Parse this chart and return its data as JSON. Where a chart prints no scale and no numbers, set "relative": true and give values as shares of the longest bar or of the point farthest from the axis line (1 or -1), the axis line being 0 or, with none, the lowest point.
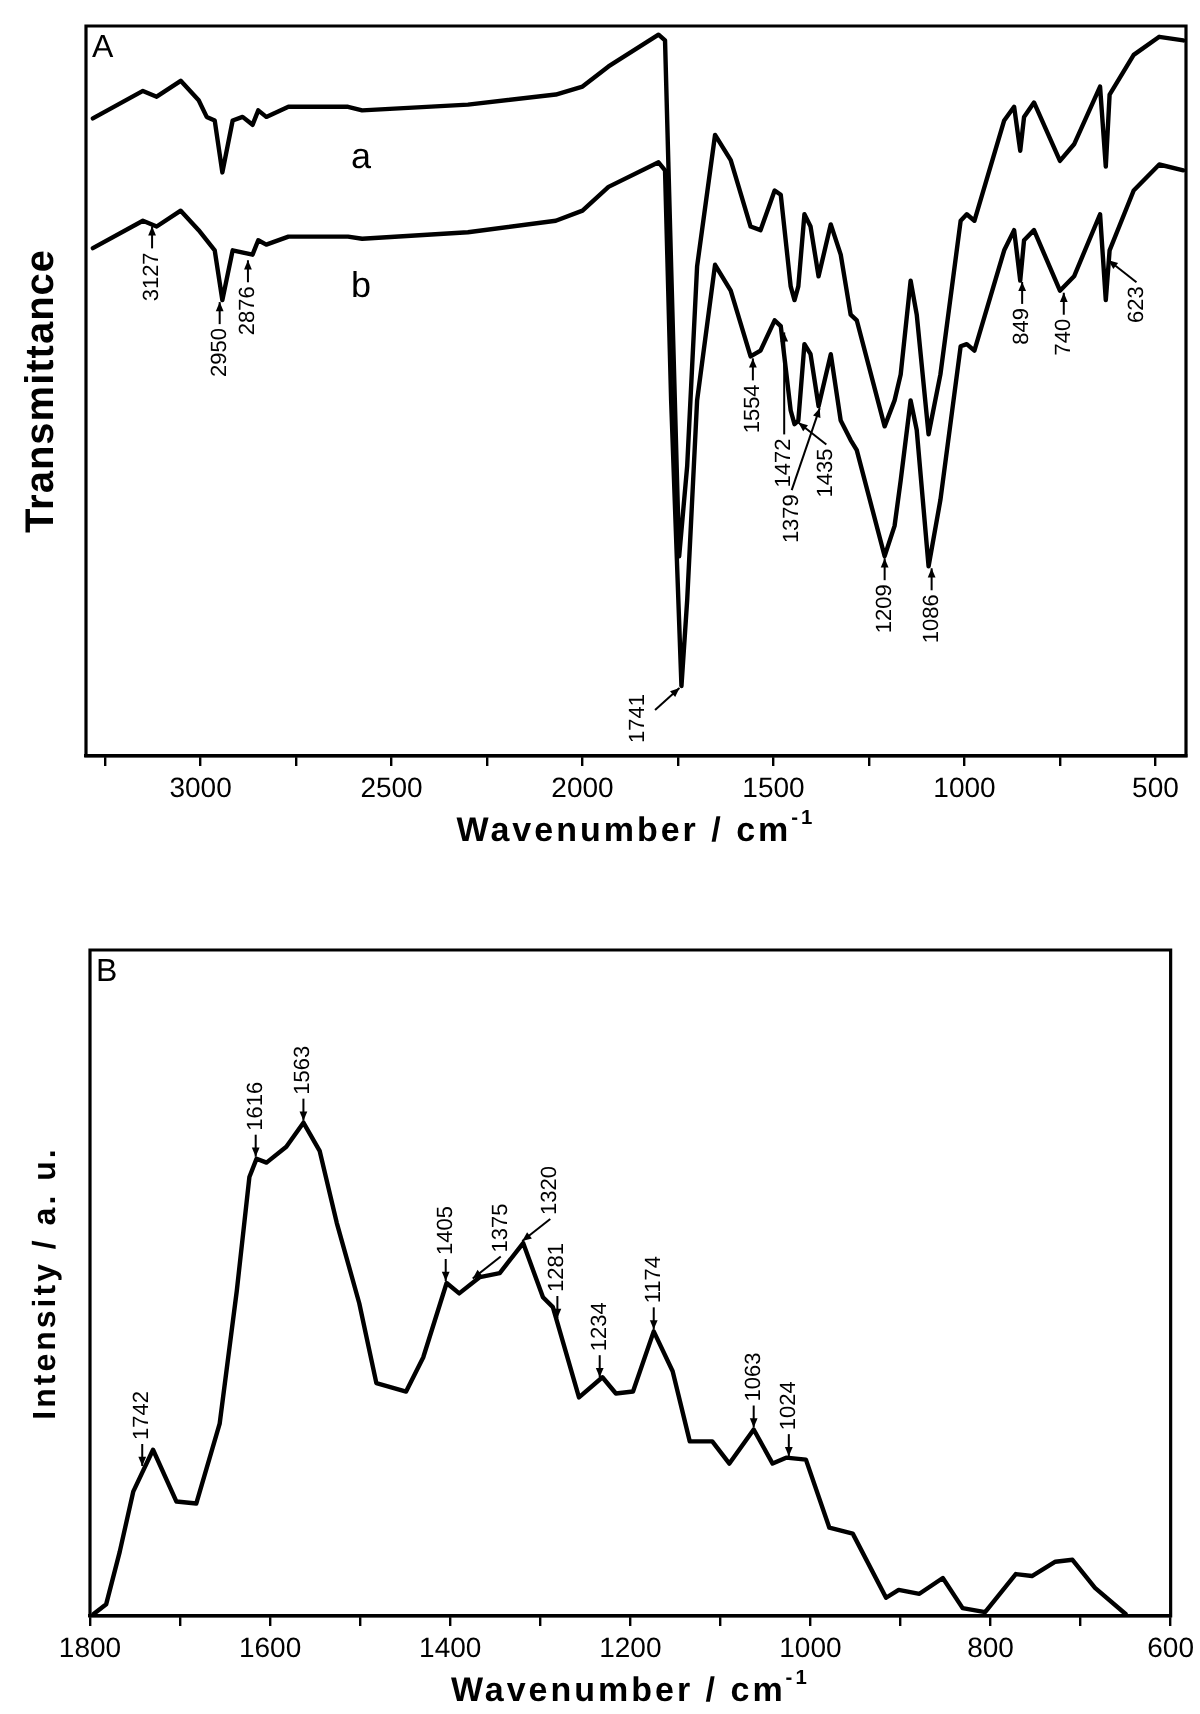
{
  "chart_data": [
    {
      "type": "line",
      "title": "A",
      "xlabel": "Wavenumber / cm$^{-1}$",
      "ylabel": "Transmittance",
      "relative": true,
      "xlim": [
        3300,
        420
      ],
      "xticks": [
        {
          "value": 3250,
          "label": null
        },
        3000,
        {
          "value": 2750,
          "label": null
        },
        2500,
        {
          "value": 2250,
          "label": null
        },
        2000,
        {
          "value": 1750,
          "label": null
        },
        1500,
        {
          "value": 1250,
          "label": null
        },
        1000,
        {
          "value": 750,
          "label": null
        },
        500
      ],
      "series": [
        {
          "name": "a",
          "color": "#000000",
          "x": [
            3282,
            3151,
            3115,
            3052,
            3005,
            2984,
            2963,
            2943,
            2916,
            2890,
            2864,
            2849,
            2828,
            2770,
            2614,
            2577,
            2300,
            2070,
            2000,
            1932,
            1801,
            1784,
            1768,
            1747,
            1726,
            1700,
            1653,
            1612,
            1560,
            1534,
            1497,
            1481,
            1455,
            1445,
            1435,
            1419,
            1403,
            1382,
            1350,
            1324,
            1298,
            1282,
            1209,
            1183,
            1167,
            1141,
            1125,
            1094,
            1063,
            1010,
            994,
            974,
            896,
            870,
            854,
            844,
            818,
            750,
            713,
            645,
            630,
            620,
            557,
            490,
            427
          ],
          "values": [
            0.884,
            0.922,
            0.914,
            0.936,
            0.909,
            0.886,
            0.881,
            0.809,
            0.881,
            0.886,
            0.875,
            0.895,
            0.886,
            0.9,
            0.9,
            0.895,
            0.903,
            0.917,
            0.928,
            0.956,
            1.0,
            0.992,
            0.679,
            0.277,
            0.402,
            0.679,
            0.861,
            0.826,
            0.734,
            0.729,
            0.784,
            0.778,
            0.651,
            0.632,
            0.651,
            0.751,
            0.734,
            0.665,
            0.737,
            0.695,
            0.612,
            0.604,
            0.457,
            0.493,
            0.529,
            0.659,
            0.612,
            0.446,
            0.529,
            0.742,
            0.751,
            0.742,
            0.881,
            0.9,
            0.839,
            0.886,
            0.906,
            0.825,
            0.848,
            0.928,
            0.817,
            0.917,
            0.972,
            0.997,
            0.992
          ]
        },
        {
          "name": "b",
          "color": "#000000",
          "x": [
            3282,
            3151,
            3115,
            3052,
            3005,
            2963,
            2943,
            2916,
            2864,
            2849,
            2828,
            2770,
            2614,
            2577,
            2300,
            2070,
            2000,
            1932,
            1801,
            1784,
            1768,
            1741,
            1726,
            1700,
            1653,
            1612,
            1560,
            1534,
            1497,
            1481,
            1455,
            1445,
            1435,
            1419,
            1403,
            1382,
            1350,
            1324,
            1298,
            1282,
            1209,
            1183,
            1167,
            1141,
            1125,
            1094,
            1063,
            1010,
            994,
            974,
            896,
            870,
            854,
            844,
            818,
            750,
            713,
            645,
            630,
            620,
            557,
            490,
            427
          ],
          "values": [
            0.704,
            0.742,
            0.734,
            0.756,
            0.729,
            0.701,
            0.632,
            0.701,
            0.695,
            0.715,
            0.709,
            0.72,
            0.72,
            0.717,
            0.726,
            0.742,
            0.756,
            0.789,
            0.823,
            0.812,
            0.493,
            0.097,
            0.216,
            0.493,
            0.681,
            0.645,
            0.554,
            0.562,
            0.604,
            0.596,
            0.479,
            0.46,
            0.465,
            0.571,
            0.557,
            0.485,
            0.557,
            0.465,
            0.438,
            0.424,
            0.277,
            0.319,
            0.382,
            0.493,
            0.452,
            0.263,
            0.355,
            0.568,
            0.571,
            0.562,
            0.701,
            0.729,
            0.659,
            0.715,
            0.729,
            0.645,
            0.665,
            0.751,
            0.632,
            0.701,
            0.784,
            0.82,
            0.812
          ]
        }
      ],
      "annotations": [
        {
          "text": "3127",
          "x": 3127,
          "y": 0.737
        },
        {
          "text": "2950",
          "x": 2950,
          "y": 0.632
        },
        {
          "text": "2876",
          "x": 2876,
          "y": 0.69
        },
        {
          "text": "1741",
          "x": 1741,
          "y": 0.097
        },
        {
          "text": "1554",
          "x": 1554,
          "y": 0.554
        },
        {
          "text": "1472",
          "x": 1472,
          "y": 0.59
        },
        {
          "text": "1435",
          "x": 1435,
          "y": 0.465
        },
        {
          "text": "1379",
          "x": 1379,
          "y": 0.485
        },
        {
          "text": "1209",
          "x": 1209,
          "y": 0.277
        },
        {
          "text": "1086",
          "x": 1086,
          "y": 0.263
        },
        {
          "text": "849",
          "x": 849,
          "y": 0.66
        },
        {
          "text": "740",
          "x": 740,
          "y": 0.645
        },
        {
          "text": "623",
          "x": 623,
          "y": 0.69
        }
      ]
    },
    {
      "type": "line",
      "title": "B",
      "xlabel": "Wavenumber / cm$^{-1}$",
      "ylabel": "Intensity / a. u.",
      "relative": true,
      "xlim": [
        1800,
        600
      ],
      "xticks": [
        1800,
        {
          "value": 1700,
          "label": null
        },
        1600,
        {
          "value": 1500,
          "label": null
        },
        1400,
        {
          "value": 1300,
          "label": null
        },
        1200,
        {
          "value": 1100,
          "label": null
        },
        1000,
        {
          "value": 900,
          "label": null
        },
        800,
        {
          "value": 700,
          "label": null
        },
        600
      ],
      "series": [
        {
          "color": "#000000",
          "x": [
            1796,
            1782,
            1767,
            1752,
            1730,
            1704,
            1682,
            1656,
            1637,
            1623,
            1615,
            1604,
            1582,
            1563,
            1545,
            1526,
            1501,
            1482,
            1449,
            1430,
            1404,
            1390,
            1367,
            1345,
            1319,
            1297,
            1286,
            1257,
            1231,
            1216,
            1197,
            1174,
            1153,
            1134,
            1109,
            1090,
            1063,
            1042,
            1027,
            1005,
            979,
            953,
            916,
            902,
            879,
            853,
            831,
            806,
            772,
            754,
            728,
            709,
            684,
            650
          ],
          "values": [
            0.004,
            0.024,
            0.13,
            0.252,
            0.337,
            0.232,
            0.228,
            0.39,
            0.659,
            0.89,
            0.927,
            0.919,
            0.951,
            1.0,
            0.943,
            0.797,
            0.634,
            0.472,
            0.455,
            0.524,
            0.675,
            0.654,
            0.687,
            0.695,
            0.756,
            0.646,
            0.626,
            0.443,
            0.484,
            0.451,
            0.455,
            0.577,
            0.496,
            0.354,
            0.354,
            0.309,
            0.378,
            0.309,
            0.321,
            0.317,
            0.179,
            0.167,
            0.037,
            0.053,
            0.045,
            0.077,
            0.016,
            0.008,
            0.085,
            0.081,
            0.11,
            0.114,
            0.057,
            0.004
          ]
        }
      ],
      "annotations": [
        {
          "text": "1742",
          "x": 1742,
          "y": 0.3
        },
        {
          "text": "1616",
          "x": 1616,
          "y": 0.927
        },
        {
          "text": "1563",
          "x": 1563,
          "y": 1.0
        },
        {
          "text": "1405",
          "x": 1405,
          "y": 0.675
        },
        {
          "text": "1375",
          "x": 1375,
          "y": 0.68
        },
        {
          "text": "1320",
          "x": 1320,
          "y": 0.756
        },
        {
          "text": "1281",
          "x": 1281,
          "y": 0.6
        },
        {
          "text": "1234",
          "x": 1234,
          "y": 0.48
        },
        {
          "text": "1174",
          "x": 1174,
          "y": 0.577
        },
        {
          "text": "1063",
          "x": 1063,
          "y": 0.378
        },
        {
          "text": "1024",
          "x": 1024,
          "y": 0.32
        }
      ]
    }
  ]
}
